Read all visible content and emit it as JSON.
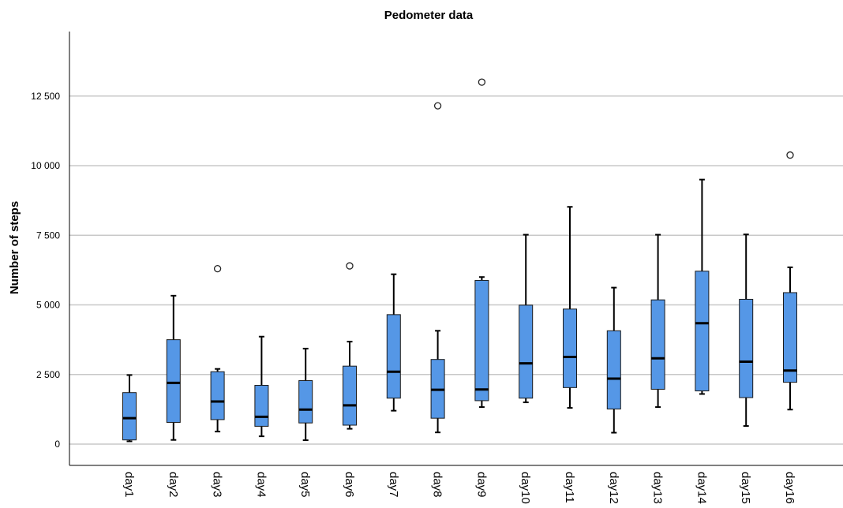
{
  "chart_data": {
    "type": "box",
    "title": "Pedometer data",
    "ylabel": "Number of steps",
    "xlabel": "",
    "ylim": [
      -700,
      14700
    ],
    "yticks": [
      0,
      2500,
      5000,
      7500,
      10000,
      12500
    ],
    "ytick_labels": [
      "0",
      "2 500",
      "5 000",
      "7 500",
      "10 000",
      "12 500"
    ],
    "grid": true,
    "box_color": "#5597e6",
    "categories": [
      "day1",
      "day2",
      "day3",
      "day4",
      "day5",
      "day6",
      "day7",
      "day8",
      "day9",
      "day10",
      "day11",
      "day12",
      "day13",
      "day14",
      "day15",
      "day16"
    ],
    "boxes": [
      {
        "min": 100,
        "q1": 150,
        "median": 930,
        "q3": 1850,
        "max": 2480,
        "outliers": []
      },
      {
        "min": 150,
        "q1": 780,
        "median": 2200,
        "q3": 3750,
        "max": 5330,
        "outliers": []
      },
      {
        "min": 450,
        "q1": 880,
        "median": 1530,
        "q3": 2600,
        "max": 2700,
        "outliers": [
          6300
        ]
      },
      {
        "min": 280,
        "q1": 640,
        "median": 980,
        "q3": 2110,
        "max": 3860,
        "outliers": []
      },
      {
        "min": 140,
        "q1": 760,
        "median": 1240,
        "q3": 2280,
        "max": 3430,
        "outliers": []
      },
      {
        "min": 550,
        "q1": 680,
        "median": 1390,
        "q3": 2800,
        "max": 3680,
        "outliers": [
          6400
        ]
      },
      {
        "min": 1200,
        "q1": 1650,
        "median": 2600,
        "q3": 4650,
        "max": 6100,
        "outliers": []
      },
      {
        "min": 420,
        "q1": 930,
        "median": 1950,
        "q3": 3040,
        "max": 4070,
        "outliers": [
          12150
        ]
      },
      {
        "min": 1330,
        "q1": 1560,
        "median": 1960,
        "q3": 5880,
        "max": 6000,
        "outliers": [
          13000
        ]
      },
      {
        "min": 1500,
        "q1": 1650,
        "median": 2900,
        "q3": 4990,
        "max": 7520,
        "outliers": []
      },
      {
        "min": 1300,
        "q1": 2030,
        "median": 3130,
        "q3": 4850,
        "max": 8520,
        "outliers": []
      },
      {
        "min": 410,
        "q1": 1260,
        "median": 2350,
        "q3": 4070,
        "max": 5620,
        "outliers": []
      },
      {
        "min": 1330,
        "q1": 1970,
        "median": 3080,
        "q3": 5180,
        "max": 7520,
        "outliers": []
      },
      {
        "min": 1800,
        "q1": 1910,
        "median": 4340,
        "q3": 6210,
        "max": 9500,
        "outliers": []
      },
      {
        "min": 650,
        "q1": 1670,
        "median": 2960,
        "q3": 5200,
        "max": 7530,
        "outliers": []
      },
      {
        "min": 1240,
        "q1": 2220,
        "median": 2640,
        "q3": 5440,
        "max": 6350,
        "outliers": [
          10380
        ]
      }
    ]
  }
}
